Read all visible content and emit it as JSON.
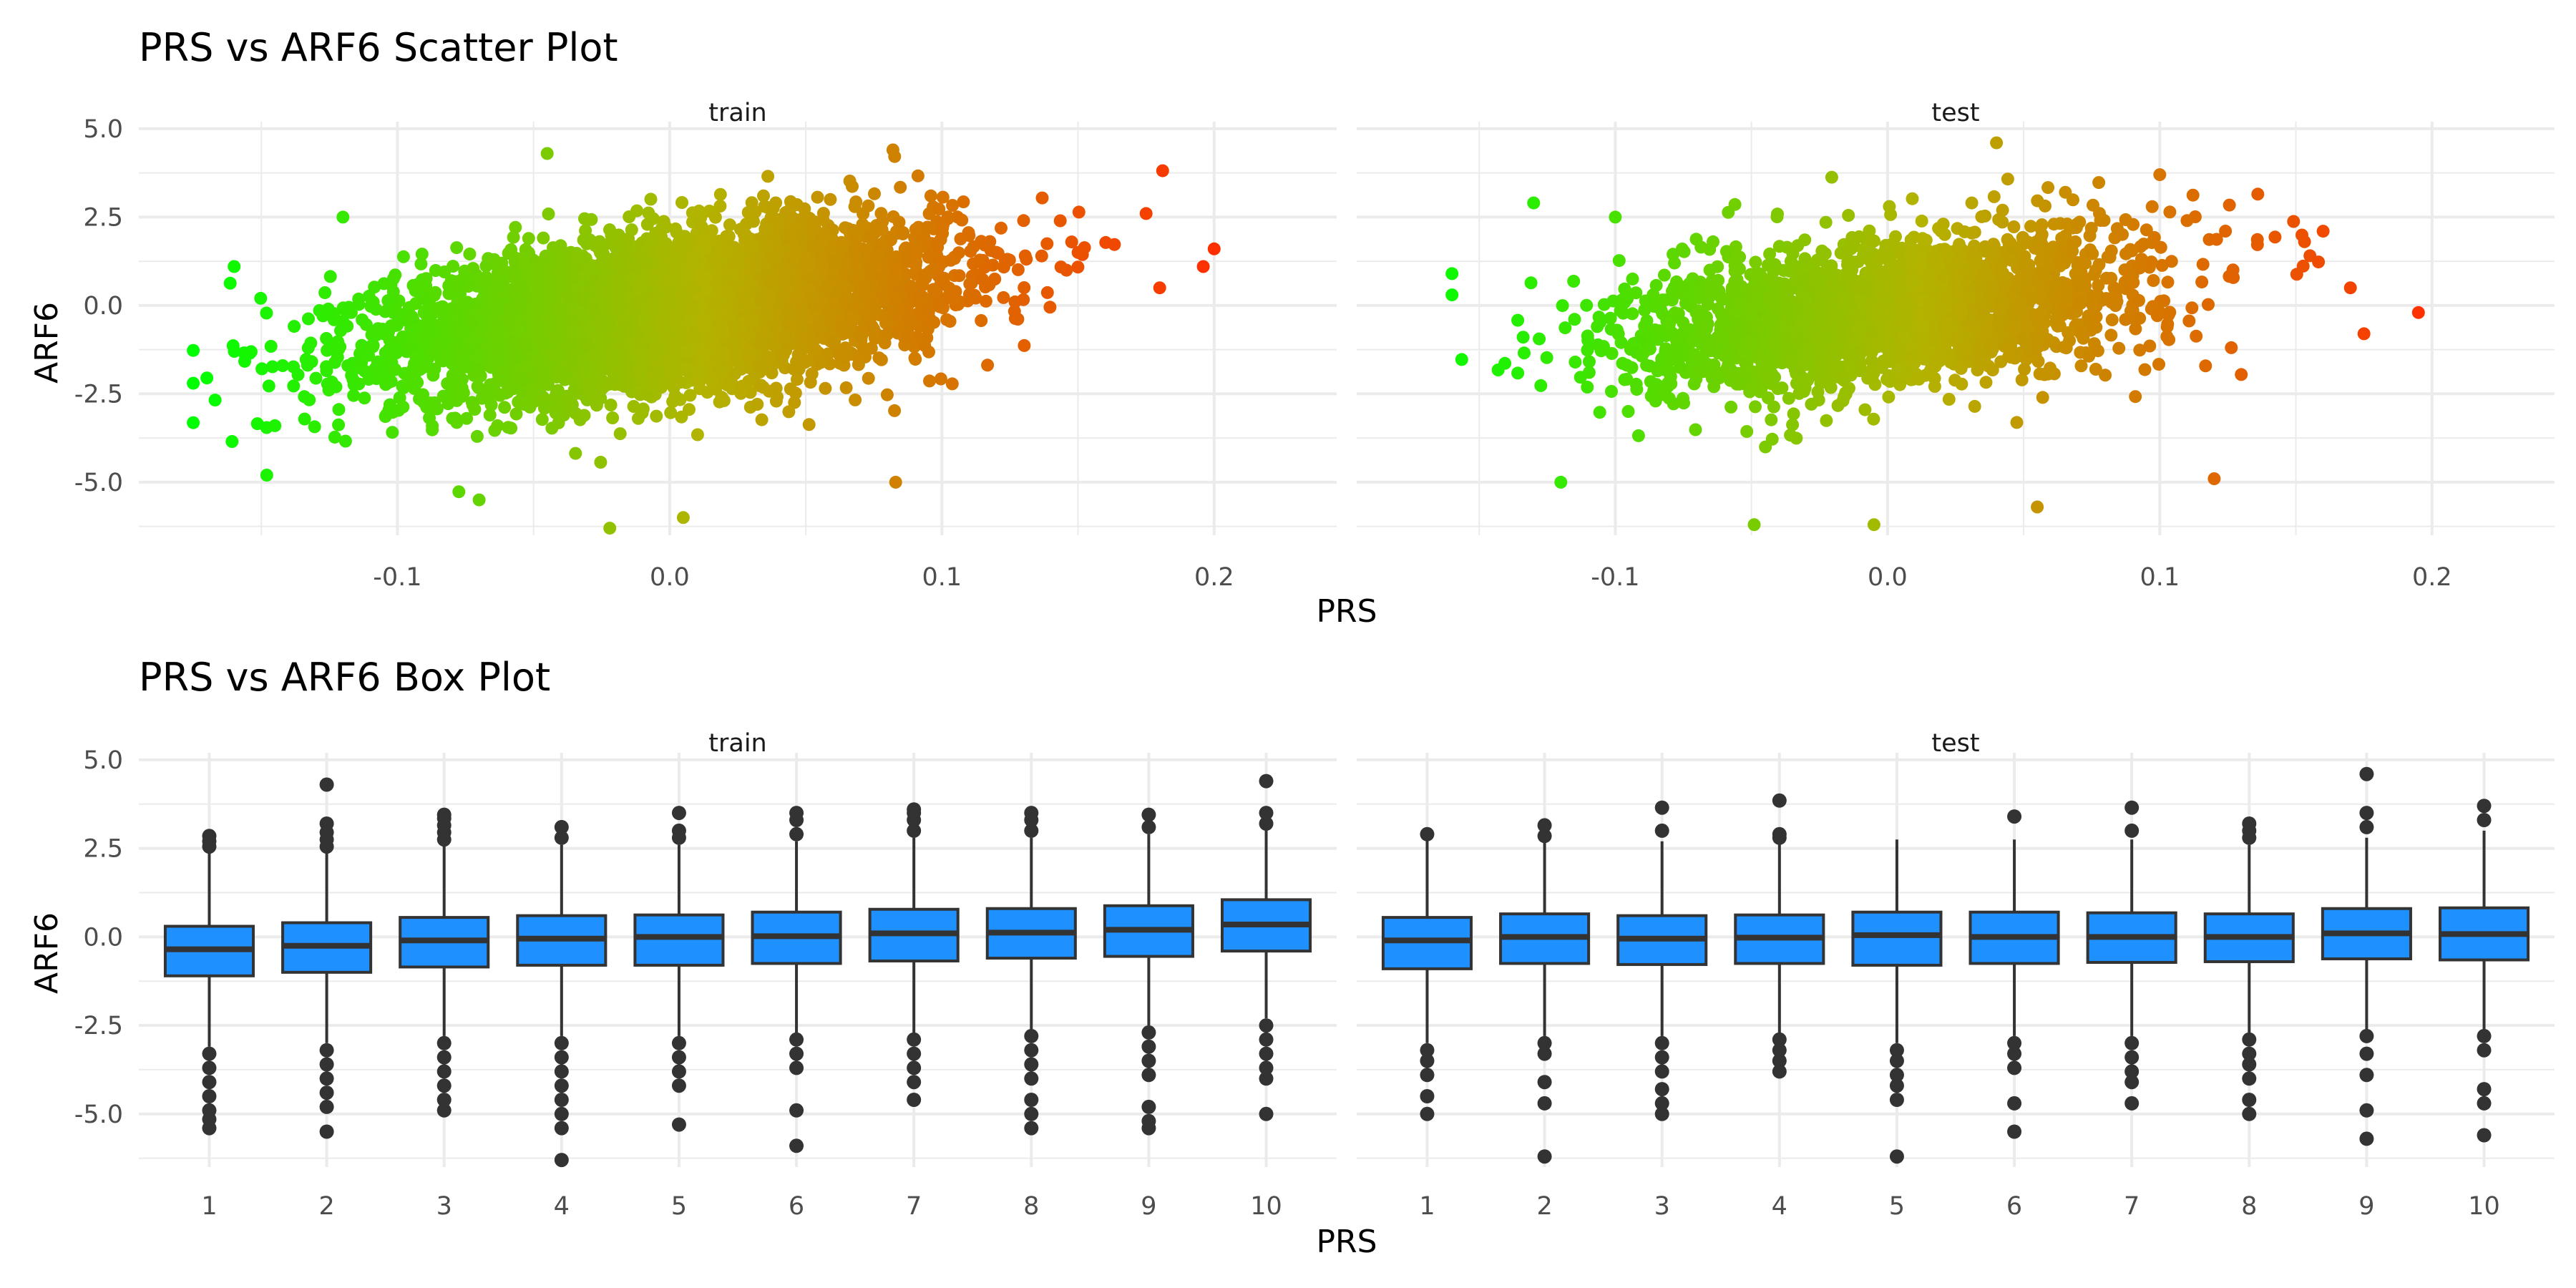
{
  "colors": {
    "grid": "#ebebeb",
    "box_fill": "#1e90ff",
    "box_line": "#333333",
    "outlier": "#333333",
    "scatter_low": "#00ff00",
    "scatter_mid": "#b3b300",
    "scatter_high": "#ff2e00"
  },
  "chart_data": [
    {
      "type": "scatter",
      "title": "PRS vs ARF6 Scatter Plot",
      "xlabel": "PRS",
      "ylabel": "ARF6",
      "xlim": [
        -0.195,
        0.245
      ],
      "ylim": [
        -6.5,
        5.2
      ],
      "x_ticks": [
        -0.1,
        0.0,
        0.1,
        0.2
      ],
      "x_tick_labels": [
        "-0.1",
        "0.0",
        "0.1",
        "0.2"
      ],
      "y_ticks": [
        -5.0,
        -2.5,
        0.0,
        2.5,
        5.0
      ],
      "y_tick_labels": [
        "-5.0",
        "-2.5",
        "0.0",
        "2.5",
        "5.0"
      ],
      "grid": true,
      "color_encoding": "continuous by PRS, green (low) to orange-red (high)",
      "panels": [
        {
          "name": "train",
          "x_range": [
            -0.175,
            0.2
          ],
          "y_range": [
            -6.3,
            4.4
          ],
          "sample_points": [
            [
              -0.175,
              -2.2
            ],
            [
              -0.17,
              -2.05
            ],
            [
              -0.16,
              1.1
            ],
            [
              -0.148,
              -4.8
            ],
            [
              -0.145,
              -3.4
            ],
            [
              -0.12,
              2.5
            ],
            [
              -0.07,
              -5.5
            ],
            [
              -0.045,
              4.3
            ],
            [
              -0.022,
              -6.3
            ],
            [
              0.005,
              -6.0
            ],
            [
              0.082,
              4.4
            ],
            [
              0.083,
              -5.0
            ],
            [
              0.13,
              2.4
            ],
            [
              0.15,
              1.5
            ],
            [
              0.175,
              2.6
            ],
            [
              0.196,
              1.1
            ],
            [
              0.2,
              1.6
            ],
            [
              0.18,
              0.5
            ]
          ]
        },
        {
          "name": "test",
          "x_range": [
            -0.16,
            0.195
          ],
          "y_range": [
            -6.2,
            4.6
          ],
          "sample_points": [
            [
              -0.16,
              0.9
            ],
            [
              -0.16,
              0.3
            ],
            [
              -0.13,
              2.9
            ],
            [
              -0.12,
              -5.0
            ],
            [
              -0.1,
              2.5
            ],
            [
              -0.049,
              -6.2
            ],
            [
              -0.005,
              -6.2
            ],
            [
              0.04,
              4.6
            ],
            [
              0.055,
              -5.7
            ],
            [
              0.1,
              3.7
            ],
            [
              0.11,
              2.4
            ],
            [
              0.16,
              2.1
            ],
            [
              0.17,
              0.5
            ],
            [
              0.175,
              -0.8
            ],
            [
              0.195,
              -0.2
            ],
            [
              0.12,
              -4.9
            ]
          ]
        }
      ]
    },
    {
      "type": "box",
      "title": "PRS vs ARF6 Box Plot",
      "xlabel": "PRS",
      "ylabel": "ARF6",
      "categories": [
        "1",
        "2",
        "3",
        "4",
        "5",
        "6",
        "7",
        "8",
        "9",
        "10"
      ],
      "ylim": [
        -6.5,
        5.2
      ],
      "y_ticks": [
        -5.0,
        -2.5,
        0.0,
        2.5,
        5.0
      ],
      "y_tick_labels": [
        "-5.0",
        "-2.5",
        "0.0",
        "2.5",
        "5.0"
      ],
      "grid": true,
      "panels": [
        {
          "name": "train",
          "boxes": [
            {
              "q1": -1.1,
              "median": -0.35,
              "q3": 0.3,
              "whisker_low": -3.1,
              "whisker_high": 2.4,
              "outliers": [
                2.55,
                2.7,
                2.85,
                -3.3,
                -3.7,
                -4.1,
                -4.5,
                -4.9,
                -5.15,
                -5.4
              ]
            },
            {
              "q1": -1.0,
              "median": -0.25,
              "q3": 0.4,
              "whisker_low": -3.0,
              "whisker_high": 2.4,
              "outliers": [
                2.55,
                2.75,
                2.95,
                3.2,
                4.3,
                -3.2,
                -3.6,
                -4.0,
                -4.4,
                -4.8,
                -5.5
              ]
            },
            {
              "q1": -0.85,
              "median": -0.1,
              "q3": 0.55,
              "whisker_low": -2.8,
              "whisker_high": 2.6,
              "outliers": [
                2.75,
                2.95,
                3.15,
                3.35,
                3.45,
                -3.0,
                -3.4,
                -3.8,
                -4.2,
                -4.6,
                -4.9
              ]
            },
            {
              "q1": -0.8,
              "median": -0.05,
              "q3": 0.6,
              "whisker_low": -2.8,
              "whisker_high": 2.6,
              "outliers": [
                2.8,
                3.1,
                -3.0,
                -3.4,
                -3.8,
                -4.2,
                -4.6,
                -5.0,
                -5.4,
                -6.3
              ]
            },
            {
              "q1": -0.8,
              "median": 0.0,
              "q3": 0.62,
              "whisker_low": -2.8,
              "whisker_high": 2.6,
              "outliers": [
                2.8,
                3.0,
                3.5,
                -3.0,
                -3.4,
                -3.8,
                -4.2,
                -5.3
              ]
            },
            {
              "q1": -0.75,
              "median": 0.02,
              "q3": 0.7,
              "whisker_low": -2.7,
              "whisker_high": 2.7,
              "outliers": [
                2.9,
                3.3,
                3.5,
                -2.9,
                -3.3,
                -3.7,
                -4.9,
                -5.9
              ]
            },
            {
              "q1": -0.68,
              "median": 0.1,
              "q3": 0.78,
              "whisker_low": -2.7,
              "whisker_high": 2.8,
              "outliers": [
                3.0,
                3.3,
                3.5,
                3.6,
                -2.9,
                -3.3,
                -3.7,
                -4.1,
                -4.6
              ]
            },
            {
              "q1": -0.6,
              "median": 0.12,
              "q3": 0.8,
              "whisker_low": -2.6,
              "whisker_high": 2.8,
              "outliers": [
                3.0,
                3.3,
                3.5,
                -2.8,
                -3.2,
                -3.6,
                -4.0,
                -4.6,
                -5.0,
                -5.4
              ]
            },
            {
              "q1": -0.55,
              "median": 0.2,
              "q3": 0.88,
              "whisker_low": -2.5,
              "whisker_high": 2.9,
              "outliers": [
                3.1,
                3.45,
                -2.7,
                -3.1,
                -3.5,
                -3.9,
                -4.8,
                -5.2,
                -5.4
              ]
            },
            {
              "q1": -0.4,
              "median": 0.35,
              "q3": 1.05,
              "whisker_low": -2.3,
              "whisker_high": 3.0,
              "outliers": [
                3.2,
                3.5,
                4.4,
                -2.5,
                -2.9,
                -3.3,
                -3.7,
                -4.0,
                -5.0
              ]
            }
          ]
        },
        {
          "name": "test",
          "boxes": [
            {
              "q1": -0.9,
              "median": -0.1,
              "q3": 0.55,
              "whisker_low": -3.0,
              "whisker_high": 2.75,
              "outliers": [
                2.9,
                -3.2,
                -3.5,
                -3.9,
                -4.5,
                -5.0
              ]
            },
            {
              "q1": -0.75,
              "median": 0.0,
              "q3": 0.65,
              "whisker_low": -2.8,
              "whisker_high": 2.7,
              "outliers": [
                2.85,
                3.15,
                -3.0,
                -3.3,
                -4.1,
                -4.7,
                -6.2
              ]
            },
            {
              "q1": -0.78,
              "median": -0.05,
              "q3": 0.6,
              "whisker_low": -2.8,
              "whisker_high": 2.7,
              "outliers": [
                3.0,
                3.65,
                -3.0,
                -3.4,
                -3.8,
                -4.3,
                -4.7,
                -5.0
              ]
            },
            {
              "q1": -0.75,
              "median": -0.02,
              "q3": 0.62,
              "whisker_low": -2.7,
              "whisker_high": 2.7,
              "outliers": [
                2.8,
                2.9,
                3.85,
                -2.9,
                -3.2,
                -3.5,
                -3.8
              ]
            },
            {
              "q1": -0.8,
              "median": 0.05,
              "q3": 0.7,
              "whisker_low": -3.0,
              "whisker_high": 2.75,
              "outliers": [
                -3.2,
                -3.5,
                -3.9,
                -4.2,
                -4.6,
                -6.2
              ]
            },
            {
              "q1": -0.75,
              "median": 0.0,
              "q3": 0.7,
              "whisker_low": -2.8,
              "whisker_high": 2.75,
              "outliers": [
                3.4,
                -3.0,
                -3.3,
                -3.7,
                -4.7,
                -5.5
              ]
            },
            {
              "q1": -0.72,
              "median": 0.0,
              "q3": 0.68,
              "whisker_low": -2.8,
              "whisker_high": 2.75,
              "outliers": [
                3.0,
                3.65,
                -3.0,
                -3.4,
                -3.8,
                -4.1,
                -4.7
              ]
            },
            {
              "q1": -0.7,
              "median": 0.0,
              "q3": 0.65,
              "whisker_low": -2.7,
              "whisker_high": 2.6,
              "outliers": [
                2.8,
                3.0,
                3.2,
                -2.9,
                -3.3,
                -3.6,
                -4.0,
                -4.6,
                -5.0
              ]
            },
            {
              "q1": -0.62,
              "median": 0.1,
              "q3": 0.8,
              "whisker_low": -2.6,
              "whisker_high": 2.8,
              "outliers": [
                3.1,
                3.5,
                4.6,
                -2.8,
                -3.3,
                -3.9,
                -4.9,
                -5.7
              ]
            },
            {
              "q1": -0.65,
              "median": 0.08,
              "q3": 0.82,
              "whisker_low": -2.6,
              "whisker_high": 3.0,
              "outliers": [
                3.3,
                3.7,
                -2.8,
                -3.2,
                -4.3,
                -4.7,
                -5.6
              ]
            }
          ]
        }
      ]
    }
  ]
}
